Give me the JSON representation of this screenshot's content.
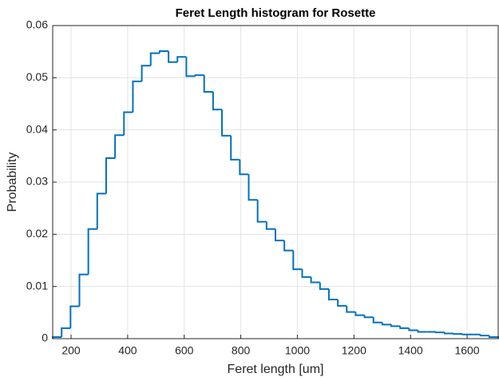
{
  "chart_data": {
    "type": "histogram",
    "title": "Feret Length histogram  for Rosette",
    "xlabel": "Feret length [um]",
    "ylabel": "Probability",
    "bins": [
      135,
      166.5,
      198,
      229.5,
      261,
      292.5,
      324,
      355.5,
      387,
      418.5,
      450,
      481.5,
      513,
      544.5,
      576,
      607.5,
      639,
      670.5,
      702,
      733.5,
      765,
      796.5,
      828,
      859.5,
      891,
      922.5,
      954,
      985.5,
      1017,
      1048.5,
      1080,
      1111.5,
      1143,
      1174.5,
      1206,
      1237.5,
      1269,
      1300.5,
      1332,
      1363.5,
      1395,
      1426.5,
      1458,
      1489.5,
      1521,
      1552.5,
      1584,
      1615.5,
      1647,
      1678.5,
      1710
    ],
    "values": [
      0.0003,
      0.002,
      0.0062,
      0.0123,
      0.021,
      0.0278,
      0.0346,
      0.039,
      0.0434,
      0.0493,
      0.0523,
      0.0547,
      0.0551,
      0.053,
      0.054,
      0.0503,
      0.0505,
      0.0473,
      0.0439,
      0.0389,
      0.0343,
      0.0315,
      0.0266,
      0.0224,
      0.021,
      0.0188,
      0.0169,
      0.0133,
      0.0118,
      0.0108,
      0.0095,
      0.0075,
      0.0063,
      0.0051,
      0.0045,
      0.0041,
      0.0031,
      0.0027,
      0.0024,
      0.002,
      0.0016,
      0.0013,
      0.0013,
      0.0012,
      0.001,
      0.0009,
      0.0008,
      0.0008,
      0.0006,
      0.0003
    ],
    "color": "#0072bd",
    "xlim": [
      135,
      1710
    ],
    "xticks": [
      200,
      400,
      600,
      800,
      1000,
      1200,
      1400,
      1600
    ],
    "ylim": [
      0,
      0.06
    ],
    "yticks": [
      0,
      0.01,
      0.02,
      0.03,
      0.04,
      0.05,
      0.06
    ],
    "grid": true
  }
}
